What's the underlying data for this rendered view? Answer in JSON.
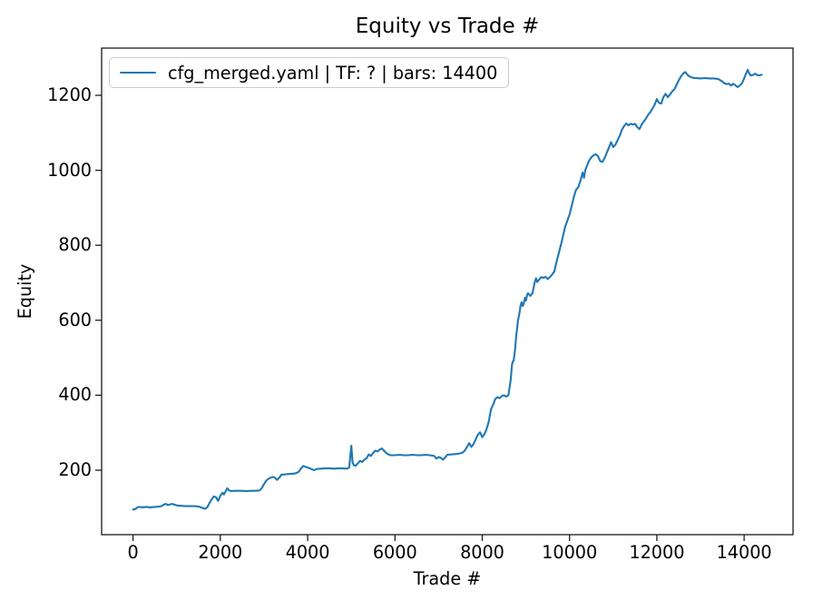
{
  "figure": {
    "background": "#ffffff",
    "text_color": "#000000"
  },
  "legend": {
    "label": "cfg_merged.yaml | TF: ? | bars: 14400",
    "position": "upper left"
  },
  "chart_data": {
    "type": "line",
    "title": "Equity vs Trade #",
    "xlabel": "Trade #",
    "ylabel": "Equity",
    "grid": false,
    "line_color": "#1f77b4",
    "axis_color": "#1a1a1a",
    "xlim": [
      -720,
      15120
    ],
    "ylim": [
      28,
      1326
    ],
    "xticks": [
      0,
      2000,
      4000,
      6000,
      8000,
      10000,
      12000,
      14000
    ],
    "yticks": [
      200,
      400,
      600,
      800,
      1000,
      1200
    ],
    "series": [
      {
        "name": "cfg_merged.yaml | TF: ? | bars: 14400",
        "x": [
          0,
          50,
          100,
          150,
          200,
          300,
          400,
          500,
          600,
          650,
          700,
          750,
          800,
          850,
          900,
          950,
          1000,
          1100,
          1200,
          1300,
          1400,
          1500,
          1600,
          1650,
          1700,
          1750,
          1800,
          1850,
          1900,
          1950,
          2000,
          2050,
          2080,
          2120,
          2160,
          2200,
          2250,
          2300,
          2400,
          2500,
          2600,
          2700,
          2800,
          2900,
          2950,
          3000,
          3050,
          3100,
          3150,
          3200,
          3250,
          3300,
          3350,
          3400,
          3500,
          3600,
          3700,
          3750,
          3800,
          3850,
          3900,
          3950,
          4000,
          4050,
          4100,
          4150,
          4200,
          4300,
          4400,
          4500,
          4600,
          4700,
          4800,
          4900,
          4950,
          5000,
          5030,
          5060,
          5100,
          5150,
          5200,
          5250,
          5300,
          5350,
          5400,
          5450,
          5500,
          5550,
          5600,
          5650,
          5700,
          5750,
          5800,
          5850,
          5900,
          6000,
          6100,
          6200,
          6300,
          6400,
          6500,
          6600,
          6700,
          6800,
          6900,
          6950,
          7000,
          7050,
          7100,
          7150,
          7200,
          7300,
          7400,
          7500,
          7550,
          7600,
          7650,
          7700,
          7750,
          7800,
          7850,
          7900,
          7950,
          8000,
          8050,
          8100,
          8150,
          8200,
          8250,
          8300,
          8350,
          8400,
          8450,
          8500,
          8550,
          8600,
          8650,
          8680,
          8700,
          8720,
          8750,
          8780,
          8800,
          8820,
          8850,
          8880,
          8900,
          8930,
          8950,
          8980,
          9000,
          9030,
          9050,
          9100,
          9150,
          9200,
          9230,
          9260,
          9300,
          9350,
          9400,
          9450,
          9500,
          9550,
          9600,
          9650,
          9700,
          9750,
          9800,
          9850,
          9900,
          9950,
          10000,
          10050,
          10100,
          10150,
          10200,
          10250,
          10300,
          10330,
          10360,
          10400,
          10450,
          10500,
          10550,
          10600,
          10650,
          10700,
          10750,
          10800,
          10850,
          10900,
          10950,
          11000,
          11050,
          11100,
          11150,
          11200,
          11250,
          11300,
          11350,
          11400,
          11450,
          11500,
          11550,
          11600,
          11650,
          11700,
          11750,
          11800,
          11850,
          11900,
          11950,
          12000,
          12050,
          12100,
          12150,
          12200,
          12250,
          12300,
          12350,
          12400,
          12450,
          12500,
          12550,
          12600,
          12650,
          12700,
          12750,
          12800,
          12850,
          12900,
          13000,
          13100,
          13200,
          13300,
          13400,
          13500,
          13550,
          13600,
          13650,
          13700,
          13750,
          13800,
          13850,
          13900,
          13950,
          14000,
          14050,
          14080,
          14120,
          14150,
          14200,
          14250,
          14300,
          14350,
          14400
        ],
        "y": [
          95,
          96,
          101,
          102,
          101,
          102,
          101,
          102,
          103,
          104,
          108,
          110,
          107,
          109,
          110,
          108,
          106,
          105,
          104,
          104,
          104,
          103,
          99,
          97,
          101,
          112,
          122,
          130,
          128,
          118,
          132,
          140,
          135,
          143,
          152,
          146,
          144,
          145,
          145,
          145,
          144,
          145,
          145,
          146,
          152,
          163,
          172,
          177,
          180,
          182,
          180,
          174,
          180,
          188,
          189,
          190,
          191,
          193,
          196,
          205,
          211,
          209,
          207,
          205,
          202,
          200,
          203,
          204,
          205,
          205,
          204,
          205,
          205,
          204,
          207,
          265,
          220,
          213,
          212,
          218,
          225,
          222,
          228,
          232,
          242,
          238,
          246,
          252,
          250,
          255,
          258,
          252,
          246,
          242,
          240,
          240,
          241,
          240,
          240,
          241,
          240,
          240,
          241,
          240,
          238,
          231,
          235,
          233,
          228,
          234,
          241,
          242,
          243,
          245,
          247,
          252,
          262,
          272,
          262,
          270,
          282,
          295,
          301,
          288,
          296,
          310,
          330,
          362,
          375,
          390,
          395,
          392,
          398,
          400,
          396,
          400,
          440,
          480,
          490,
          492,
          520,
          560,
          580,
          600,
          618,
          640,
          648,
          638,
          645,
          660,
          652,
          668,
          672,
          665,
          672,
          700,
          712,
          702,
          708,
          715,
          713,
          716,
          710,
          715,
          722,
          730,
          755,
          778,
          800,
          825,
          850,
          866,
          882,
          905,
          930,
          948,
          955,
          972,
          994,
          980,
          1000,
          1012,
          1026,
          1035,
          1040,
          1043,
          1038,
          1025,
          1022,
          1032,
          1046,
          1060,
          1075,
          1062,
          1068,
          1080,
          1092,
          1108,
          1118,
          1125,
          1120,
          1124,
          1122,
          1124,
          1115,
          1110,
          1122,
          1130,
          1138,
          1148,
          1155,
          1165,
          1175,
          1190,
          1180,
          1178,
          1195,
          1204,
          1195,
          1202,
          1210,
          1216,
          1228,
          1240,
          1250,
          1258,
          1262,
          1255,
          1250,
          1248,
          1246,
          1246,
          1245,
          1246,
          1245,
          1245,
          1244,
          1237,
          1232,
          1230,
          1231,
          1226,
          1231,
          1227,
          1222,
          1226,
          1232,
          1245,
          1260,
          1268,
          1258,
          1253,
          1254,
          1258,
          1254,
          1253,
          1255
        ]
      }
    ]
  }
}
